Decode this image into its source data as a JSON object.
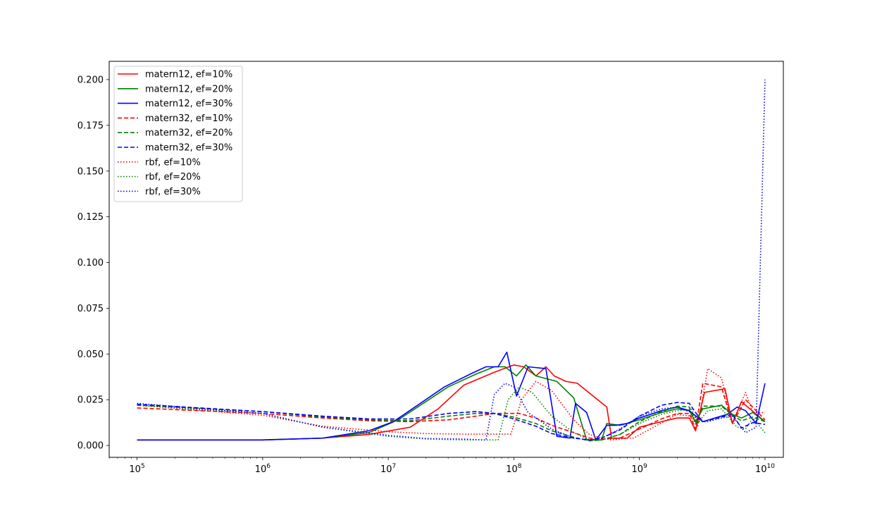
{
  "chart_data": {
    "type": "line",
    "title": "",
    "xlabel": "",
    "ylabel": "",
    "xscale": "log",
    "xlim": [
      60000,
      14000000000
    ],
    "ylim": [
      -0.0065,
      0.21
    ],
    "grid": false,
    "legend_position": "top-left",
    "x_ticks": [
      {
        "value": 100000,
        "base": "10",
        "exp": "5"
      },
      {
        "value": 1000000,
        "base": "10",
        "exp": "6"
      },
      {
        "value": 10000000,
        "base": "10",
        "exp": "7"
      },
      {
        "value": 100000000,
        "base": "10",
        "exp": "8"
      },
      {
        "value": 1000000000,
        "base": "10",
        "exp": "9"
      },
      {
        "value": 10000000000,
        "base": "10",
        "exp": "10"
      }
    ],
    "y_ticks": [
      {
        "value": 0.0,
        "label": "0.000"
      },
      {
        "value": 0.025,
        "label": "0.025"
      },
      {
        "value": 0.05,
        "label": "0.050"
      },
      {
        "value": 0.075,
        "label": "0.075"
      },
      {
        "value": 0.1,
        "label": "0.100"
      },
      {
        "value": 0.125,
        "label": "0.125"
      },
      {
        "value": 0.15,
        "label": "0.150"
      },
      {
        "value": 0.175,
        "label": "0.175"
      },
      {
        "value": 0.2,
        "label": "0.200"
      }
    ],
    "series": [
      {
        "name": "matern12, ef=10%",
        "color": "#ff0000",
        "dash": "solid",
        "x": [
          100000.0,
          1000000.0,
          3000000.0,
          7000000.0,
          15000000.0,
          25000000.0,
          40000000.0,
          70000000.0,
          100000000.0,
          120000000.0,
          150000000.0,
          180000000.0,
          210000000.0,
          260000000.0,
          320000000.0,
          550000000.0,
          600000000.0,
          800000000.0,
          1000000000.0,
          1500000000.0,
          2000000000.0,
          2500000000.0,
          2800000000.0,
          3300000000.0,
          4800000000.0,
          5500000000.0,
          6500000000.0,
          7000000000.0,
          10000000000.0
        ],
        "y": [
          0.003,
          0.003,
          0.004,
          0.006,
          0.01,
          0.02,
          0.033,
          0.04,
          0.044,
          0.043,
          0.038,
          0.043,
          0.038,
          0.035,
          0.034,
          0.021,
          0.004,
          0.004,
          0.01,
          0.013,
          0.015,
          0.015,
          0.008,
          0.029,
          0.031,
          0.012,
          0.024,
          0.022,
          0.013
        ]
      },
      {
        "name": "matern12, ef=20%",
        "color": "#008000",
        "dash": "solid",
        "x": [
          100000.0,
          1000000.0,
          3000000.0,
          7000000.0,
          12000000.0,
          20000000.0,
          30000000.0,
          50000000.0,
          70000000.0,
          85000000.0,
          105000000.0,
          125000000.0,
          150000000.0,
          220000000.0,
          300000000.0,
          380000000.0,
          500000000.0,
          550000000.0,
          700000000.0,
          1000000000.0,
          1500000000.0,
          2000000000.0,
          2500000000.0,
          2800000000.0,
          3200000000.0,
          4500000000.0,
          5500000000.0,
          6500000000.0,
          8000000000.0,
          10000000000.0
        ],
        "y": [
          0.003,
          0.003,
          0.004,
          0.007,
          0.014,
          0.024,
          0.032,
          0.039,
          0.043,
          0.043,
          0.038,
          0.044,
          0.038,
          0.035,
          0.026,
          0.003,
          0.003,
          0.012,
          0.011,
          0.014,
          0.018,
          0.02,
          0.019,
          0.013,
          0.02,
          0.022,
          0.017,
          0.015,
          0.018,
          0.013
        ]
      },
      {
        "name": "matern12, ef=30%",
        "color": "#0000ff",
        "dash": "solid",
        "x": [
          100000.0,
          1000000.0,
          3000000.0,
          7000000.0,
          11000000.0,
          18000000.0,
          28000000.0,
          45000000.0,
          60000000.0,
          75000000.0,
          88000000.0,
          105000000.0,
          130000000.0,
          180000000.0,
          220000000.0,
          280000000.0,
          310000000.0,
          380000000.0,
          450000000.0,
          550000000.0,
          650000000.0,
          800000000.0,
          1000000000.0,
          1500000000.0,
          2000000000.0,
          2500000000.0,
          3200000000.0,
          4000000000.0,
          5000000000.0,
          6000000000.0,
          7000000000.0,
          8500000000.0,
          10000000000.0
        ],
        "y": [
          0.003,
          0.003,
          0.004,
          0.008,
          0.013,
          0.023,
          0.032,
          0.039,
          0.043,
          0.043,
          0.051,
          0.027,
          0.043,
          0.042,
          0.005,
          0.004,
          0.023,
          0.018,
          0.003,
          0.011,
          0.011,
          0.012,
          0.015,
          0.019,
          0.021,
          0.019,
          0.013,
          0.015,
          0.017,
          0.021,
          0.019,
          0.012,
          0.034
        ]
      },
      {
        "name": "matern32, ef=10%",
        "color": "#ff0000",
        "dash": "dashed",
        "x": [
          100000.0,
          1000000.0,
          3000000.0,
          7000000.0,
          15000000.0,
          30000000.0,
          50000000.0,
          70000000.0,
          110000000.0,
          150000000.0,
          200000000.0,
          300000000.0,
          400000000.0,
          500000000.0,
          700000000.0,
          1000000000.0,
          1500000000.0,
          2000000000.0,
          2500000000.0,
          2800000000.0,
          3200000000.0,
          4500000000.0,
          5500000000.0,
          7000000000.0,
          10000000000.0
        ],
        "y": [
          0.0205,
          0.0175,
          0.015,
          0.0135,
          0.013,
          0.014,
          0.016,
          0.0175,
          0.0175,
          0.015,
          0.011,
          0.007,
          0.004,
          0.0035,
          0.004,
          0.009,
          0.0145,
          0.0175,
          0.0175,
          0.009,
          0.034,
          0.032,
          0.012,
          0.025,
          0.014
        ]
      },
      {
        "name": "matern32, ef=20%",
        "color": "#008000",
        "dash": "dashed",
        "x": [
          100000.0,
          1000000.0,
          3000000.0,
          7000000.0,
          15000000.0,
          30000000.0,
          50000000.0,
          70000000.0,
          100000000.0,
          150000000.0,
          200000000.0,
          300000000.0,
          400000000.0,
          500000000.0,
          700000000.0,
          1000000000.0,
          1500000000.0,
          2000000000.0,
          2500000000.0,
          2800000000.0,
          3200000000.0,
          4500000000.0,
          5500000000.0,
          6500000000.0,
          8000000000.0,
          10000000000.0
        ],
        "y": [
          0.022,
          0.0185,
          0.0155,
          0.014,
          0.0135,
          0.016,
          0.0175,
          0.0175,
          0.0155,
          0.012,
          0.008,
          0.0045,
          0.0025,
          0.003,
          0.006,
          0.013,
          0.0185,
          0.0215,
          0.021,
          0.012,
          0.0215,
          0.0215,
          0.0165,
          0.0135,
          0.0155,
          0.013
        ]
      },
      {
        "name": "matern32, ef=30%",
        "color": "#0000ff",
        "dash": "dashed",
        "x": [
          100000.0,
          1000000.0,
          3000000.0,
          7000000.0,
          15000000.0,
          30000000.0,
          50000000.0,
          70000000.0,
          100000000.0,
          150000000.0,
          200000000.0,
          300000000.0,
          400000000.0,
          500000000.0,
          700000000.0,
          1000000000.0,
          1500000000.0,
          2000000000.0,
          2500000000.0,
          2800000000.0,
          3200000000.0,
          4500000000.0,
          5500000000.0,
          6500000000.0,
          8000000000.0,
          10000000000.0
        ],
        "y": [
          0.0225,
          0.0185,
          0.016,
          0.0145,
          0.0145,
          0.0175,
          0.0185,
          0.0175,
          0.0145,
          0.0105,
          0.0065,
          0.004,
          0.003,
          0.004,
          0.0085,
          0.016,
          0.022,
          0.0235,
          0.023,
          0.018,
          0.013,
          0.0155,
          0.017,
          0.0095,
          0.0125,
          0.0115
        ]
      },
      {
        "name": "rbf, ef=10%",
        "color": "#ff0000",
        "dash": "dotted",
        "x": [
          100000.0,
          1000000.0,
          3000000.0,
          10000000.0,
          20000000.0,
          40000000.0,
          95000000.0,
          115000000.0,
          150000000.0,
          200000000.0,
          300000000.0,
          400000000.0,
          500000000.0,
          600000000.0,
          800000000.0,
          900000000.0,
          1300000000.0,
          2000000000.0,
          2600000000.0,
          2900000000.0,
          3500000000.0,
          4500000000.0,
          5500000000.0,
          7000000000.0,
          8000000000.0,
          10000000000.0
        ],
        "y": [
          0.022,
          0.0165,
          0.0105,
          0.0075,
          0.0065,
          0.0062,
          0.0062,
          0.025,
          0.035,
          0.03,
          0.014,
          0.006,
          0.004,
          0.003,
          0.004,
          0.004,
          0.01,
          0.017,
          0.016,
          0.01,
          0.042,
          0.037,
          0.012,
          0.029,
          0.018,
          0.018
        ]
      },
      {
        "name": "rbf, ef=20%",
        "color": "#008000",
        "dash": "dotted",
        "x": [
          100000.0,
          1000000.0,
          3000000.0,
          10000000.0,
          20000000.0,
          40000000.0,
          75000000.0,
          90000000.0,
          110000000.0,
          140000000.0,
          200000000.0,
          300000000.0,
          400000000.0,
          500000000.0,
          700000000.0,
          1000000000.0,
          1500000000.0,
          2000000000.0,
          2600000000.0,
          2900000000.0,
          3500000000.0,
          4500000000.0,
          6000000000.0,
          7000000000.0,
          8000000000.0,
          10000000000.0
        ],
        "y": [
          0.022,
          0.0175,
          0.01,
          0.005,
          0.0035,
          0.003,
          0.003,
          0.025,
          0.032,
          0.029,
          0.016,
          0.007,
          0.003,
          0.003,
          0.006,
          0.012,
          0.017,
          0.019,
          0.02,
          0.012,
          0.019,
          0.02,
          0.01,
          0.009,
          0.015,
          0.007
        ]
      },
      {
        "name": "rbf, ef=30%",
        "color": "#0000ff",
        "dash": "dotted",
        "x": [
          100000.0,
          1000000.0,
          3000000.0,
          10000000.0,
          20000000.0,
          40000000.0,
          60000000.0,
          70000000.0,
          85000000.0,
          100000000.0,
          130000000.0,
          200000000.0,
          300000000.0,
          400000000.0,
          500000000.0,
          700000000.0,
          1000000000.0,
          1500000000.0,
          2000000000.0,
          2600000000.0,
          3000000000.0,
          3500000000.0,
          4500000000.0,
          5500000000.0,
          7000000000.0,
          8500000000.0,
          10000000000.0
        ],
        "y": [
          0.023,
          0.0175,
          0.01,
          0.0055,
          0.0038,
          0.0035,
          0.003,
          0.028,
          0.034,
          0.032,
          0.018,
          0.009,
          0.004,
          0.003,
          0.004,
          0.009,
          0.016,
          0.02,
          0.021,
          0.018,
          0.013,
          0.013,
          0.015,
          0.016,
          0.007,
          0.01,
          0.2
        ]
      }
    ]
  }
}
